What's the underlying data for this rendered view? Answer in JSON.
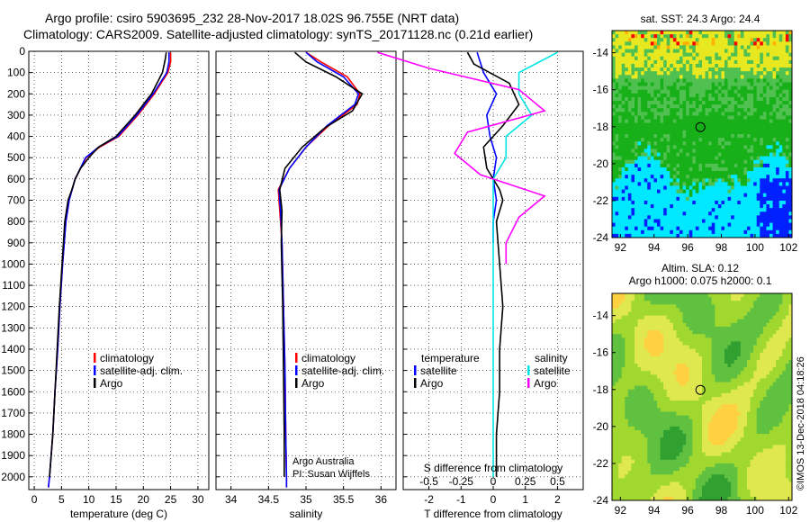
{
  "title_line1": "Argo profile: csiro 5903695_232 28-Nov-2017 18.02S 96.755E (NRT data)",
  "title_line2": "Climatology: CARS2009. Satellite-adjusted climatology: synTS_20171128.nc (0.21d earlier)",
  "credit_line1": "Argo Australia",
  "credit_line2": "PI: Susan Wijffels",
  "stamp": "©IMOS 13-Dec-2018 04:18:26",
  "colors": {
    "climatology": "#ff0000",
    "satellite": "#0000ff",
    "argo": "#000000",
    "sat_salinity": "#00e5e5",
    "argo_salinity_diff": "#ff00ff"
  },
  "legends": {
    "temperature": [
      "climatology",
      "satellite-adj. clim.",
      "Argo"
    ],
    "salinity": [
      "climatology",
      "satellite-adj. clim.",
      "Argo"
    ],
    "diff_left_header": "temperature",
    "diff_left": [
      "satellite",
      "Argo"
    ],
    "diff_right_header": "salinity",
    "diff_right": [
      "satellite",
      "Argo"
    ]
  },
  "chart_data": [
    {
      "id": "temperature",
      "type": "line",
      "xlabel": "temperature (deg C)",
      "ylabel": "",
      "xlim": [
        -1,
        32
      ],
      "ylim": [
        0,
        2060
      ],
      "xticks": [
        "0",
        "5",
        "10",
        "15",
        "20",
        "25",
        "30"
      ],
      "yticks": [
        "0",
        "100",
        "200",
        "300",
        "400",
        "500",
        "600",
        "700",
        "800",
        "900",
        "1000",
        "1100",
        "1200",
        "1300",
        "1400",
        "1500",
        "1600",
        "1700",
        "1800",
        "1900",
        "2000"
      ],
      "grid": true,
      "legend": "center",
      "series": [
        {
          "name": "climatology",
          "x": [
            25.0,
            25.0,
            24.5,
            22,
            19,
            15.5,
            12,
            9.5,
            7.5,
            6.4,
            5.8,
            5.2,
            4.7,
            4.3,
            3.8,
            3.4,
            3.1,
            2.8,
            2.6
          ],
          "y": [
            5,
            50,
            100,
            200,
            300,
            400,
            450,
            500,
            600,
            700,
            800,
            1000,
            1200,
            1400,
            1600,
            1800,
            1900,
            2000,
            2050
          ]
        },
        {
          "name": "satellite-adj. clim.",
          "x": [
            24.7,
            24.7,
            24.3,
            21.8,
            18.8,
            15.3,
            11.8,
            9.4,
            7.5,
            6.4,
            5.8,
            5.2,
            4.7,
            4.3,
            3.8,
            3.4,
            3.1,
            2.8,
            2.6
          ],
          "y": [
            5,
            50,
            100,
            200,
            300,
            400,
            450,
            500,
            600,
            700,
            800,
            1000,
            1200,
            1400,
            1600,
            1800,
            1900,
            2000,
            2050
          ]
        },
        {
          "name": "Argo",
          "x": [
            24.2,
            24.0,
            23.5,
            21.5,
            18.5,
            15.0,
            11.8,
            10,
            8.5,
            7.5,
            6.9,
            6.2,
            5.6,
            5.1,
            4.6,
            4.2,
            3.8,
            3.4,
            3.1,
            2.8
          ],
          "y": [
            5,
            40,
            100,
            200,
            300,
            400,
            450,
            500,
            550,
            600,
            650,
            700,
            800,
            1000,
            1200,
            1400,
            1600,
            1800,
            1900,
            2000
          ]
        }
      ]
    },
    {
      "id": "salinity",
      "type": "line",
      "xlabel": "salinity",
      "ylabel": "",
      "xlim": [
        33.8,
        36.2
      ],
      "ylim": [
        0,
        2060
      ],
      "xticks": [
        "34",
        "34.5",
        "35",
        "35.5",
        "36"
      ],
      "grid": true,
      "legend": "center",
      "series": [
        {
          "name": "climatology",
          "x": [
            35.0,
            35.2,
            35.55,
            35.72,
            35.68,
            35.3,
            35.0,
            34.78,
            34.63,
            34.65,
            34.68,
            34.7,
            34.72,
            34.73,
            34.74,
            34.74
          ],
          "y": [
            5,
            50,
            120,
            200,
            250,
            350,
            450,
            550,
            650,
            750,
            900,
            1200,
            1500,
            1800,
            2000,
            2050
          ]
        },
        {
          "name": "satellite-adj. clim.",
          "x": [
            35.0,
            35.15,
            35.5,
            35.7,
            35.65,
            35.28,
            35.0,
            34.78,
            34.64,
            34.66,
            34.68,
            34.7,
            34.72,
            34.73,
            34.74,
            34.74
          ],
          "y": [
            5,
            50,
            120,
            200,
            250,
            350,
            450,
            550,
            650,
            750,
            900,
            1200,
            1500,
            1800,
            2000,
            2050
          ]
        },
        {
          "name": "Argo",
          "x": [
            34.85,
            35.0,
            35.4,
            35.75,
            35.7,
            35.62,
            35.25,
            34.95,
            34.72,
            34.65,
            34.68,
            34.67,
            34.69,
            34.7,
            34.71,
            34.71
          ],
          "y": [
            5,
            50,
            120,
            200,
            230,
            280,
            360,
            450,
            550,
            650,
            750,
            900,
            1200,
            1500,
            1800,
            2000
          ]
        }
      ]
    },
    {
      "id": "difference",
      "type": "line",
      "xlabel": "T difference from climatology",
      "secondary_label": "S difference from climatology",
      "ylabel": "",
      "xlim": [
        -2.8,
        2.8
      ],
      "ylim": [
        0,
        2060
      ],
      "xticks": [
        "-2",
        "-1",
        "0",
        "1",
        "2"
      ],
      "secondary_ticks": [
        "-0.5",
        "-0.25",
        "0",
        "0.25",
        "0.5"
      ],
      "grid": true,
      "legend": "center",
      "series": [
        {
          "name": "temperature satellite",
          "x": [
            -0.5,
            -0.3,
            0.1,
            -0.2,
            -0.1,
            0.1,
            0.0,
            0.1,
            0.0,
            0.0
          ],
          "y": [
            5,
            100,
            200,
            300,
            400,
            500,
            600,
            700,
            800,
            900
          ]
        },
        {
          "name": "temperature Argo",
          "x": [
            -0.8,
            -0.6,
            0.5,
            0.8,
            0.3,
            -0.3,
            -0.2,
            0.2,
            0.3,
            0.1,
            0.2,
            0.3,
            0.2,
            0.2,
            0.1,
            0.1
          ],
          "y": [
            5,
            60,
            150,
            250,
            350,
            450,
            550,
            650,
            700,
            800,
            1000,
            1200,
            1400,
            1600,
            1800,
            2000
          ]
        },
        {
          "name": "salinity satellite",
          "x": [
            0.5,
            0.2,
            0.2,
            0.3,
            0.1,
            0.1,
            0.0,
            0.0,
            0.0,
            0.0,
            0.0,
            0.0
          ],
          "y": [
            5,
            100,
            200,
            300,
            400,
            500,
            600,
            700,
            800,
            1000,
            1500,
            2000
          ]
        },
        {
          "name": "salinity Argo",
          "x": [
            -0.9,
            -0.5,
            0.2,
            0.4,
            -0.2,
            -0.3,
            -0.1,
            0.4,
            0.2,
            0.1,
            0.1
          ],
          "y": [
            5,
            80,
            180,
            280,
            380,
            480,
            580,
            680,
            780,
            900,
            1000
          ]
        }
      ]
    },
    {
      "id": "sst_map",
      "type": "heatmap",
      "title": "sat. SST: 24.3 Argo: 24.4",
      "xticks": [
        "92",
        "94",
        "96",
        "98",
        "100",
        "102"
      ],
      "yticks": [
        "-14",
        "-16",
        "-18",
        "-20",
        "-22",
        "-24"
      ],
      "xlim": [
        91.5,
        102.2
      ],
      "ylim": [
        -24,
        -12.8
      ],
      "marker": {
        "lon": 96.755,
        "lat": -18.02
      },
      "palette": [
        "#0020ff",
        "#00e8ff",
        "#18b018",
        "#50c050",
        "#e8e820",
        "#ffb000",
        "#ff0000"
      ]
    },
    {
      "id": "sla_map",
      "type": "heatmap",
      "title": "Altim. SLA: 0.12",
      "subtitle": "Argo h1000: 0.075 h2000: 0.1",
      "xticks": [
        "92",
        "94",
        "96",
        "98",
        "100",
        "102"
      ],
      "yticks": [
        "-14",
        "-16",
        "-18",
        "-20",
        "-22",
        "-24"
      ],
      "xlim": [
        91.5,
        102.2
      ],
      "ylim": [
        -24,
        -12.8
      ],
      "marker": {
        "lon": 96.755,
        "lat": -18.02
      },
      "palette": [
        "#30a030",
        "#60c040",
        "#a0d830",
        "#e0e850",
        "#ffd040"
      ]
    }
  ]
}
